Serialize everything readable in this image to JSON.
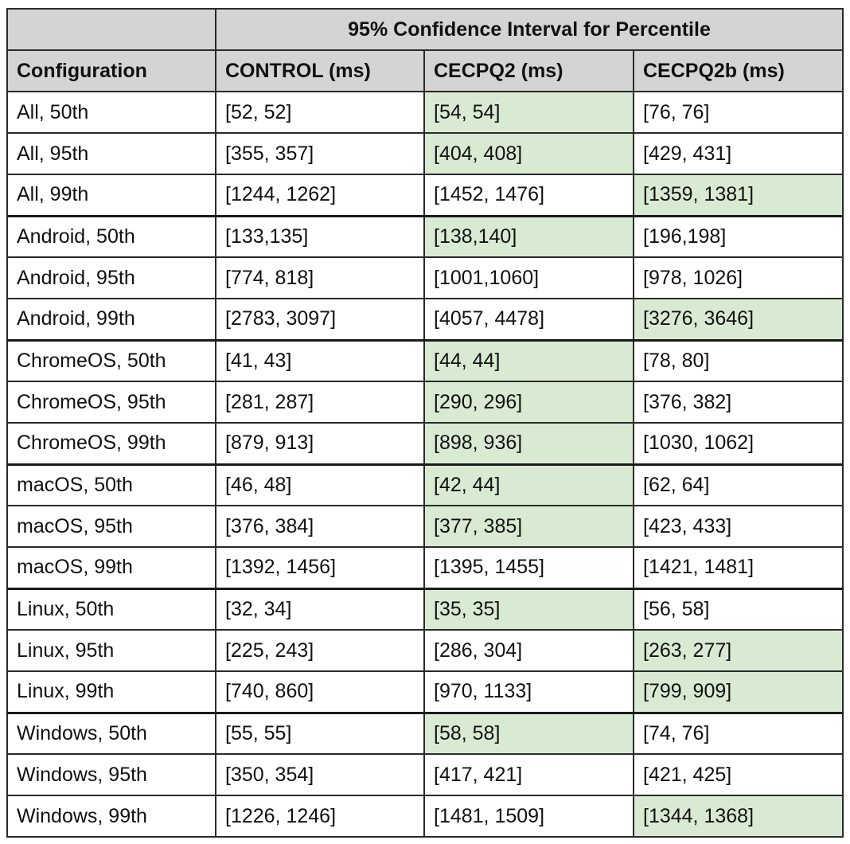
{
  "table": {
    "group_header": "95% Confidence Interval for Percentile",
    "columns": [
      "Configuration",
      "CONTROL (ms)",
      "CECPQ2 (ms)",
      "CECPQ2b (ms)"
    ],
    "highlight_color": "#d9ead3",
    "header_color": "#d4d4d4",
    "rows": [
      {
        "cells": [
          "All, 50th",
          "[52, 52]",
          "[54, 54]",
          "[76, 76]"
        ],
        "highlight": 2,
        "group_start": false
      },
      {
        "cells": [
          "All, 95th",
          "[355, 357]",
          "[404, 408]",
          "[429, 431]"
        ],
        "highlight": 2,
        "group_start": false
      },
      {
        "cells": [
          "All, 99th",
          "[1244, 1262]",
          "[1452, 1476]",
          "[1359, 1381]"
        ],
        "highlight": 3,
        "group_start": false
      },
      {
        "cells": [
          "Android, 50th",
          "[133,135]",
          "[138,140]",
          "[196,198]"
        ],
        "highlight": 2,
        "group_start": true
      },
      {
        "cells": [
          "Android, 95th",
          "[774, 818]",
          "[1001,1060]",
          "[978, 1026]"
        ],
        "highlight": null,
        "group_start": false
      },
      {
        "cells": [
          "Android, 99th",
          "[2783, 3097]",
          "[4057, 4478]",
          "[3276, 3646]"
        ],
        "highlight": 3,
        "group_start": false
      },
      {
        "cells": [
          "ChromeOS, 50th",
          "[41, 43]",
          "[44, 44]",
          "[78, 80]"
        ],
        "highlight": 2,
        "group_start": true
      },
      {
        "cells": [
          "ChromeOS, 95th",
          "[281, 287]",
          "[290, 296]",
          "[376, 382]"
        ],
        "highlight": 2,
        "group_start": false
      },
      {
        "cells": [
          "ChromeOS, 99th",
          "[879, 913]",
          "[898, 936]",
          "[1030, 1062]"
        ],
        "highlight": 2,
        "group_start": false
      },
      {
        "cells": [
          "macOS, 50th",
          "[46, 48]",
          "[42, 44]",
          "[62, 64]"
        ],
        "highlight": 2,
        "group_start": true
      },
      {
        "cells": [
          "macOS, 95th",
          "[376, 384]",
          "[377, 385]",
          "[423, 433]"
        ],
        "highlight": 2,
        "group_start": false
      },
      {
        "cells": [
          "macOS, 99th",
          "[1392, 1456]",
          "[1395, 1455]",
          "[1421, 1481]"
        ],
        "highlight": null,
        "group_start": false
      },
      {
        "cells": [
          "Linux, 50th",
          "[32, 34]",
          "[35, 35]",
          "[56, 58]"
        ],
        "highlight": 2,
        "group_start": true
      },
      {
        "cells": [
          "Linux, 95th",
          "[225, 243]",
          "[286, 304]",
          "[263, 277]"
        ],
        "highlight": 3,
        "group_start": false
      },
      {
        "cells": [
          "Linux, 99th",
          "[740, 860]",
          "[970, 1133]",
          "[799, 909]"
        ],
        "highlight": 3,
        "group_start": false
      },
      {
        "cells": [
          "Windows, 50th",
          "[55, 55]",
          "[58, 58]",
          "[74, 76]"
        ],
        "highlight": 2,
        "group_start": true
      },
      {
        "cells": [
          "Windows, 95th",
          "[350, 354]",
          "[417, 421]",
          "[421, 425]"
        ],
        "highlight": null,
        "group_start": false
      },
      {
        "cells": [
          "Windows, 99th",
          "[1226, 1246]",
          "[1481, 1509]",
          "[1344, 1368]"
        ],
        "highlight": 3,
        "group_start": false
      }
    ]
  }
}
